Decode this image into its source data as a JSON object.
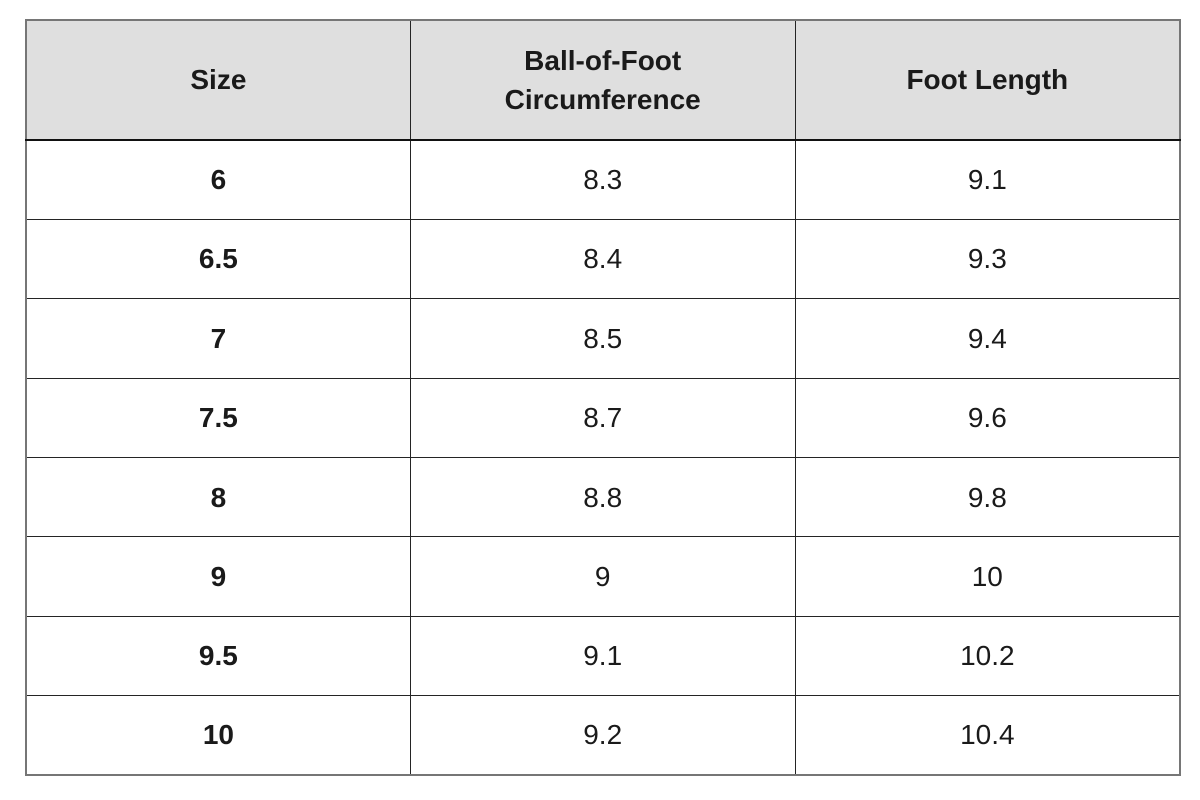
{
  "colors": {
    "header_bg": "#dfdfdf",
    "border_inner": "#242424",
    "border_outer": "#767676",
    "text": "#1a1a1a",
    "page_bg": "#ffffff"
  },
  "table": {
    "headers": [
      "Size",
      "Ball-of-Foot Circumference",
      "Foot Length"
    ],
    "rows": [
      [
        "6",
        "8.3",
        "9.1"
      ],
      [
        "6.5",
        "8.4",
        "9.3"
      ],
      [
        "7",
        "8.5",
        "9.4"
      ],
      [
        "7.5",
        "8.7",
        "9.6"
      ],
      [
        "8",
        "8.8",
        "9.8"
      ],
      [
        "9",
        "9",
        "10"
      ],
      [
        "9.5",
        "9.1",
        "10.2"
      ],
      [
        "10",
        "9.2",
        "10.4"
      ]
    ]
  },
  "chart_data": {
    "type": "table",
    "title": "",
    "columns": [
      "Size",
      "Ball-of-Foot Circumference",
      "Foot Length"
    ],
    "series": [
      {
        "name": "Size",
        "values": [
          6,
          6.5,
          7,
          7.5,
          8,
          9,
          9.5,
          10
        ]
      },
      {
        "name": "Ball-of-Foot Circumference",
        "values": [
          8.3,
          8.4,
          8.5,
          8.7,
          8.8,
          9,
          9.1,
          9.2
        ]
      },
      {
        "name": "Foot Length",
        "values": [
          9.1,
          9.3,
          9.4,
          9.6,
          9.8,
          10,
          10.2,
          10.4
        ]
      }
    ],
    "layout_hints": {
      "header_background": "#dfdfdf",
      "header_bold": true,
      "first_column_bold": true,
      "cell_alignment": "center",
      "grid": "all-borders"
    }
  }
}
